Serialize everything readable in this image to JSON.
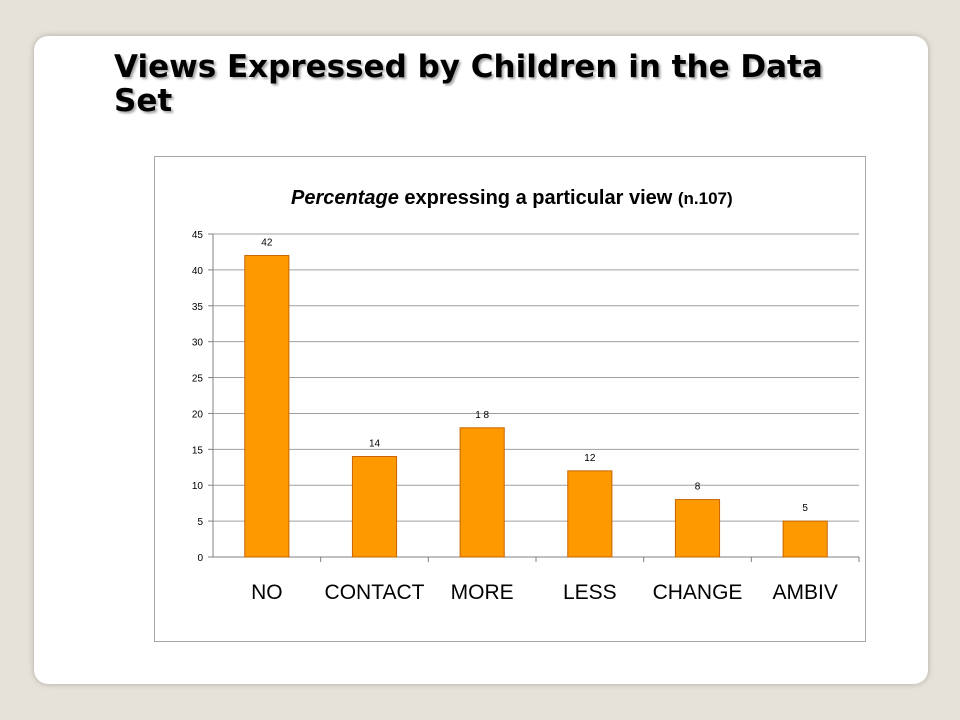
{
  "slide": {
    "title": "Views Expressed by Children in the Data Set"
  },
  "chart_data": {
    "type": "bar",
    "title_emphasis": "Percentage",
    "title_rest": " expressing a particular view ",
    "title_suffix": "(n.107)",
    "categories": [
      "NO",
      "CONTACT",
      "MORE",
      "LESS",
      "CHANGE",
      "AMBIV"
    ],
    "values": [
      42,
      14,
      18,
      12,
      8,
      5
    ],
    "data_labels": [
      "42",
      "14",
      "1 8",
      "12",
      "8",
      "5"
    ],
    "ylim": [
      0,
      45
    ],
    "yticks": [
      0,
      5,
      10,
      15,
      20,
      25,
      30,
      35,
      40,
      45
    ],
    "grid": true,
    "legend": "none",
    "bar_color": "#ff9900",
    "bar_edge_color": "#c86400"
  }
}
